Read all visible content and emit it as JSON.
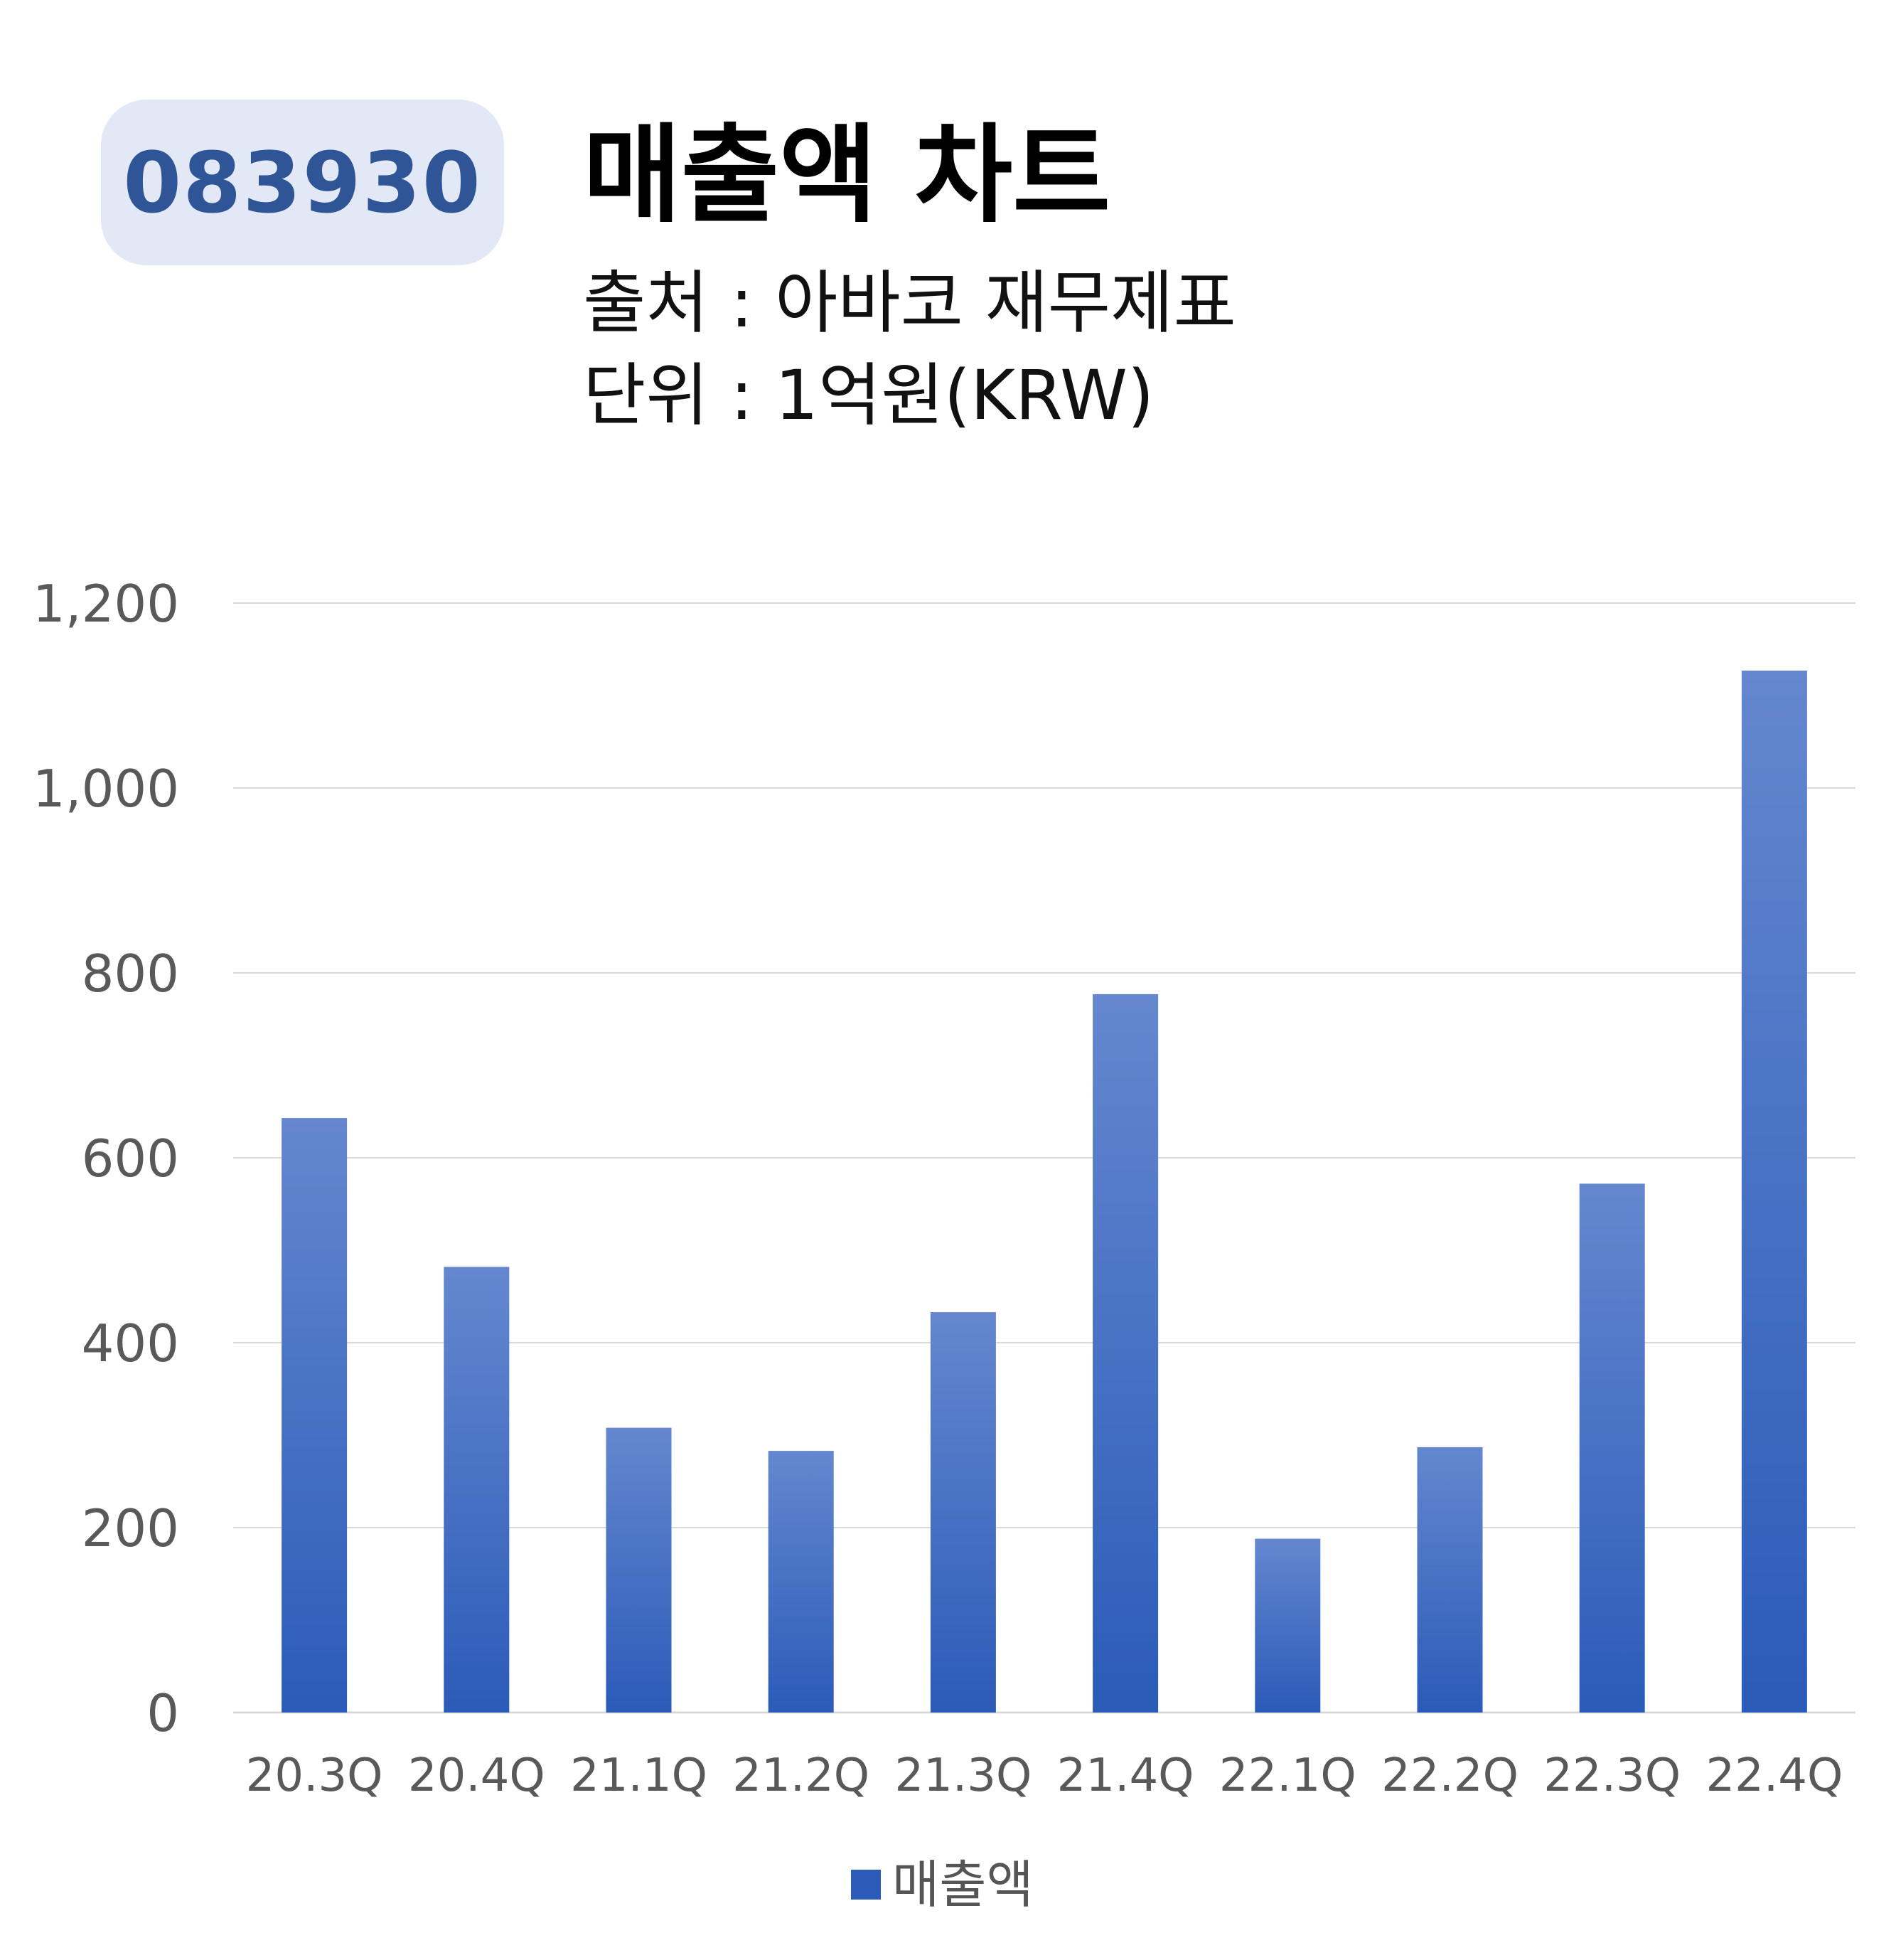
{
  "header": {
    "ticker": "083930",
    "title": "매출액 차트",
    "source": "출처 : 아바코 재무제표",
    "unit": "단위 : 1억원(KRW)"
  },
  "colors": {
    "bar_top": "#6487cf",
    "bar_bottom": "#2b5bb8",
    "grid": "#d9d9d9",
    "tick_text": "#595959",
    "badge_bg": "#e2e8f5",
    "badge_text": "#2f5597"
  },
  "chart_data": {
    "type": "bar",
    "categories": [
      "20.3Q",
      "20.4Q",
      "21.1Q",
      "21.2Q",
      "21.3Q",
      "21.4Q",
      "22.1Q",
      "22.2Q",
      "22.3Q",
      "22.4Q"
    ],
    "series": [
      {
        "name": "매출액",
        "values": [
          643,
          482,
          308,
          283,
          433,
          777,
          188,
          287,
          572,
          1127
        ]
      }
    ],
    "ylim": [
      0,
      1200
    ],
    "yticks": [
      0,
      200,
      400,
      600,
      800,
      1000,
      1200
    ],
    "ytick_labels": [
      "0",
      "200",
      "400",
      "600",
      "800",
      "1,000",
      "1,200"
    ],
    "grid": true,
    "legend_position": "bottom"
  }
}
